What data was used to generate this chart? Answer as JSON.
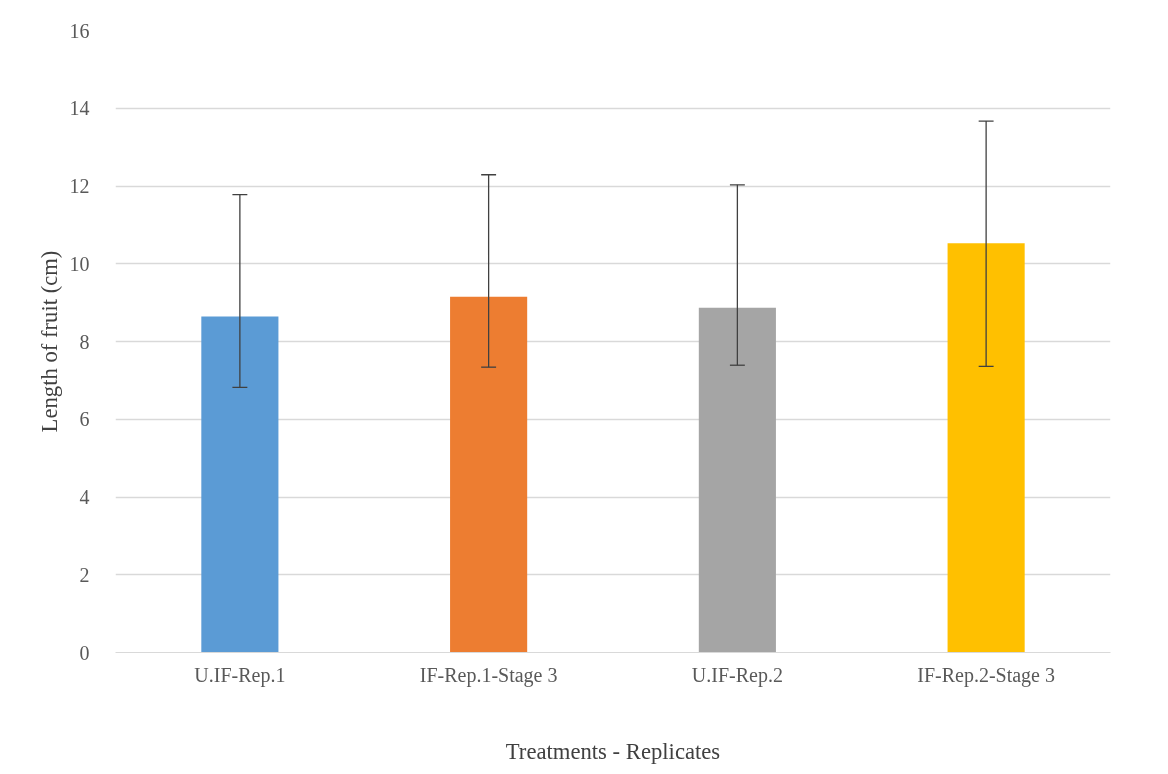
{
  "chart_data": {
    "type": "bar",
    "xlabel": "Treatments - Replicates",
    "ylabel": "Length of fruit (cm)",
    "categories": [
      "U.IF-Rep.1",
      "IF-Rep.1-Stage 3",
      "U.IF-Rep.2",
      "IF-Rep.2-Stage 3"
    ],
    "values": [
      8.64,
      9.15,
      8.87,
      10.53
    ],
    "colors": [
      "#5b9bd5",
      "#ed7d31",
      "#a5a5a5",
      "#ffc000"
    ],
    "errors": [
      [
        6.82,
        11.78
      ],
      [
        7.34,
        12.29
      ],
      [
        7.39,
        12.03
      ],
      [
        7.36,
        13.67
      ]
    ],
    "ylim": [
      0,
      16
    ],
    "yticks": [
      0,
      2,
      4,
      6,
      8,
      10,
      12,
      14,
      16
    ],
    "grid": "y"
  }
}
